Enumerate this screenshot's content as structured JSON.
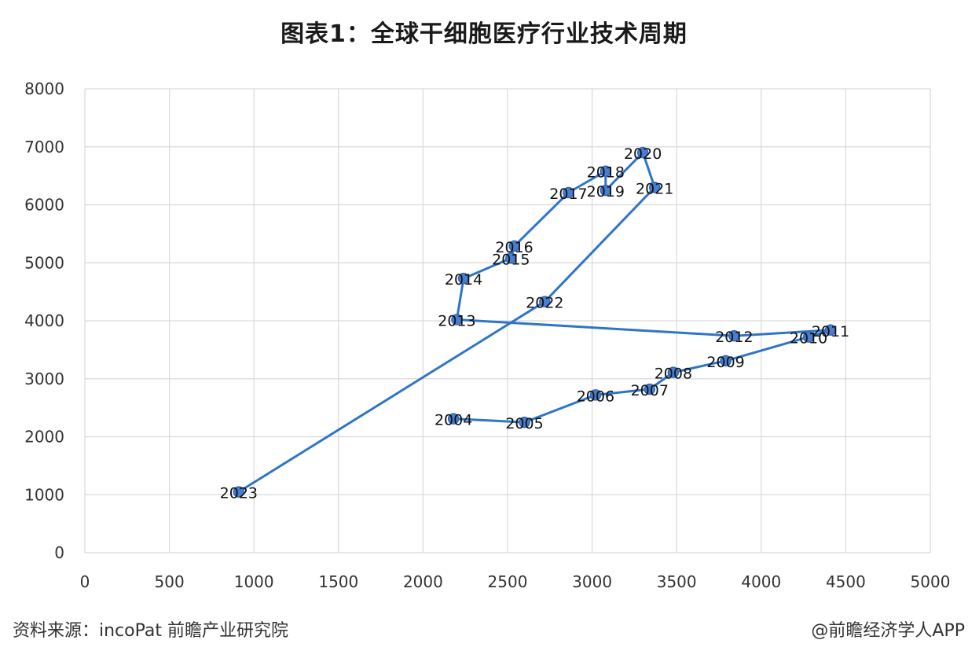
{
  "chart_data": {
    "type": "scatter",
    "title": "图表1：全球干细胞医疗行业技术周期",
    "xlabel": "",
    "ylabel": "",
    "xlim": [
      0,
      5000
    ],
    "ylim": [
      0,
      8000
    ],
    "x_ticks": [
      0,
      500,
      1000,
      1500,
      2000,
      2500,
      3000,
      3500,
      4000,
      4500,
      5000
    ],
    "y_ticks": [
      0,
      1000,
      2000,
      3000,
      4000,
      5000,
      6000,
      7000,
      8000
    ],
    "grid": true,
    "connected": true,
    "colors": {
      "line": "#2e75c9",
      "marker": "#4a7fd0",
      "grid": "#d9d9d9"
    },
    "points": [
      {
        "label": "2004",
        "x": 2180,
        "y": 2310
      },
      {
        "label": "2005",
        "x": 2600,
        "y": 2250
      },
      {
        "label": "2006",
        "x": 3020,
        "y": 2720
      },
      {
        "label": "2007",
        "x": 3340,
        "y": 2820
      },
      {
        "label": "2008",
        "x": 3480,
        "y": 3110
      },
      {
        "label": "2009",
        "x": 3790,
        "y": 3310
      },
      {
        "label": "2010",
        "x": 4280,
        "y": 3720
      },
      {
        "label": "2011",
        "x": 4410,
        "y": 3840
      },
      {
        "label": "2012",
        "x": 3840,
        "y": 3740
      },
      {
        "label": "2013",
        "x": 2200,
        "y": 4020
      },
      {
        "label": "2014",
        "x": 2240,
        "y": 4730
      },
      {
        "label": "2015",
        "x": 2520,
        "y": 5080
      },
      {
        "label": "2016",
        "x": 2540,
        "y": 5290
      },
      {
        "label": "2017",
        "x": 2860,
        "y": 6210
      },
      {
        "label": "2018",
        "x": 3080,
        "y": 6580
      },
      {
        "label": "2019",
        "x": 3080,
        "y": 6250
      },
      {
        "label": "2020",
        "x": 3300,
        "y": 6900
      },
      {
        "label": "2021",
        "x": 3370,
        "y": 6300
      },
      {
        "label": "2022",
        "x": 2720,
        "y": 4330
      },
      {
        "label": "2023",
        "x": 910,
        "y": 1050
      }
    ]
  },
  "footer": {
    "source": "资料来源：incoPat 前瞻产业研究院",
    "brand": "@前瞻经济学人APP"
  }
}
